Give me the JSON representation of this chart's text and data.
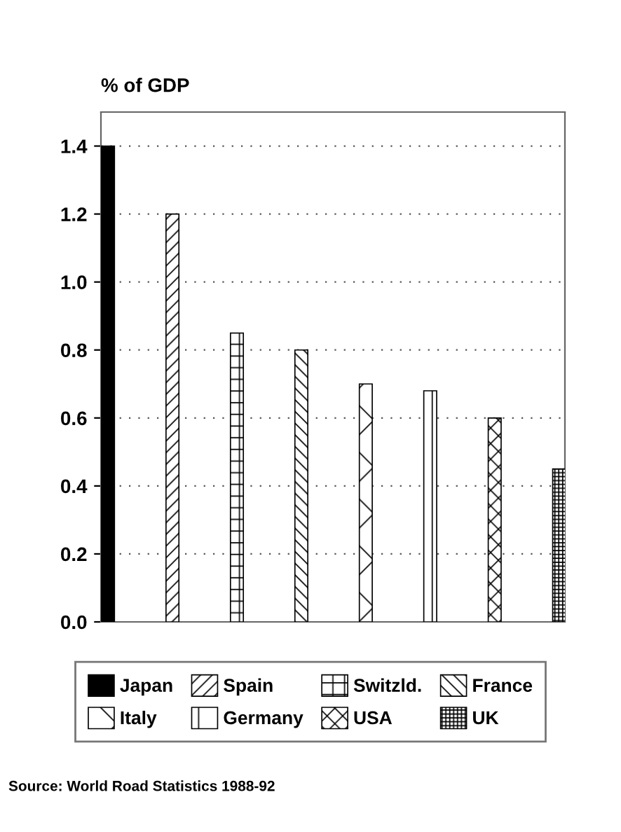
{
  "chart_data": {
    "type": "bar",
    "ylabel": "% of GDP",
    "categories": [
      null,
      null,
      null,
      null,
      null,
      null,
      null,
      null
    ],
    "series": [
      {
        "name": "Japan",
        "color": "#000000",
        "values": [
          1.4,
          null,
          null,
          null,
          null,
          null,
          null,
          null
        ]
      },
      {
        "name": "Spain",
        "color": "#000000",
        "values": [
          null,
          1.2,
          null,
          null,
          null,
          null,
          null,
          null
        ]
      },
      {
        "name": "Switzld.",
        "color": "#000000",
        "values": [
          null,
          null,
          0.85,
          null,
          null,
          null,
          null,
          null
        ]
      },
      {
        "name": "France",
        "color": "#000000",
        "values": [
          null,
          null,
          null,
          0.8,
          null,
          null,
          null,
          null
        ]
      },
      {
        "name": "Italy",
        "color": "#000000",
        "values": [
          null,
          null,
          null,
          null,
          0.7,
          null,
          null,
          null
        ]
      },
      {
        "name": "Germany",
        "color": "#000000",
        "values": [
          null,
          null,
          null,
          null,
          null,
          0.68,
          null,
          null
        ]
      },
      {
        "name": "USA",
        "color": "#000000",
        "values": [
          null,
          null,
          null,
          null,
          null,
          null,
          0.6,
          null
        ]
      },
      {
        "name": "UK",
        "color": "#000000",
        "values": [
          null,
          null,
          null,
          null,
          null,
          null,
          null,
          0.45
        ]
      }
    ],
    "ylim": [
      0,
      1.5
    ],
    "yticks": [
      {
        "value": 0,
        "label": "0.0"
      },
      0.2,
      0.4,
      0.6,
      0.8,
      {
        "value": 1,
        "label": "1.0"
      },
      1.2,
      1.4
    ],
    "grid": "y",
    "legend": "bottom",
    "annotations": [
      "Source: World Road Statistics 1988-92"
    ]
  }
}
